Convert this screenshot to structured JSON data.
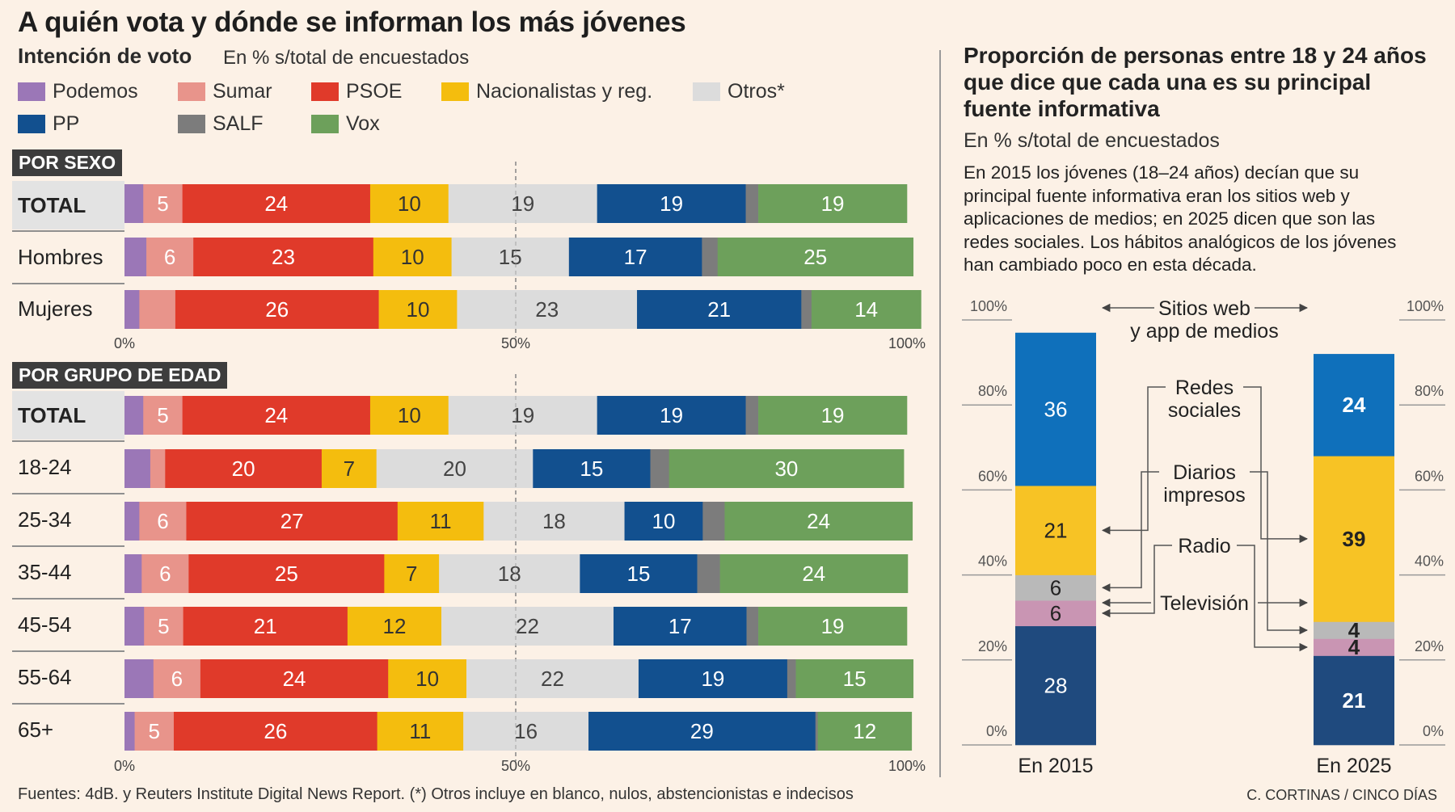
{
  "title": "A quién vota y dónde se informan los más jóvenes",
  "left": {
    "subtitle": "Intención de voto",
    "unit": "En % s/total de encuestados"
  },
  "colors": {
    "Podemos": "#9b77b7",
    "Sumar": "#e8948b",
    "PSOE": "#e03a2a",
    "Nacionalistas y reg.": "#f4bd0e",
    "Otros*": "#dcdcdc",
    "PP": "#12508f",
    "SALF": "#7c7c7c",
    "Vox": "#6da05b"
  },
  "legend": [
    {
      "label": "Podemos",
      "color": "#9b77b7"
    },
    {
      "label": "Sumar",
      "color": "#e8948b"
    },
    {
      "label": "PSOE",
      "color": "#e03a2a"
    },
    {
      "label": "Nacionalistas y reg.",
      "color": "#f4bd0e"
    },
    {
      "label": "Otros*",
      "color": "#dcdcdc"
    },
    {
      "label": "PP",
      "color": "#12508f"
    },
    {
      "label": "SALF",
      "color": "#7c7c7c"
    },
    {
      "label": "Vox",
      "color": "#6da05b"
    }
  ],
  "sections": {
    "sexo": "POR SEXO",
    "edad": "POR GRUPO DE EDAD"
  },
  "axis_ticks": [
    "0%",
    "50%",
    "100%"
  ],
  "source": "Fuentes: 4dB. y Reuters Institute Digital News Report. (*) Otros incluye en blanco, nulos, abstencionistas e indecisos",
  "credit": "C. CORTINAS / CINCO DÍAS",
  "right": {
    "title": "Proporción de personas entre 18 y 24 años que dice que cada una es su principal fuente informativa",
    "unit": "En % s/total de encuestados",
    "description": "En 2015 los jóvenes (18–24 años) decían que su principal fuente informativa eran los sitios web y aplicaciones de medios; en 2025 dicen que son las redes sociales. Los hábitos analógicos de los jóvenes han cambiado poco en esta década."
  },
  "chart_data": [
    {
      "type": "bar",
      "orientation": "horizontal-stacked",
      "section": "POR SEXO",
      "series_order": [
        "Podemos",
        "Sumar",
        "PSOE",
        "Nacionalistas y reg.",
        "Otros*",
        "PP",
        "SALF",
        "Vox"
      ],
      "xlim": [
        0,
        100
      ],
      "rows": [
        {
          "label": "TOTAL",
          "values": [
            2.4,
            5,
            24,
            10,
            19,
            19,
            1.6,
            19
          ],
          "labels": [
            "",
            "5",
            "24",
            "10",
            "19",
            "19",
            "",
            "19"
          ]
        },
        {
          "label": "Hombres",
          "values": [
            2.8,
            6,
            23,
            10,
            15,
            17,
            2,
            25
          ],
          "labels": [
            "",
            "6",
            "23",
            "10",
            "15",
            "17",
            "",
            "25"
          ]
        },
        {
          "label": "Mujeres",
          "values": [
            1.9,
            4.6,
            26,
            10,
            23,
            21,
            1.3,
            14
          ],
          "labels": [
            "",
            "",
            "26",
            "10",
            "23",
            "21",
            "",
            "14"
          ]
        }
      ]
    },
    {
      "type": "bar",
      "orientation": "horizontal-stacked",
      "section": "POR GRUPO DE EDAD",
      "series_order": [
        "Podemos",
        "Sumar",
        "PSOE",
        "Nacionalistas y reg.",
        "Otros*",
        "PP",
        "SALF",
        "Vox"
      ],
      "xlim": [
        0,
        100
      ],
      "rows": [
        {
          "label": "TOTAL",
          "values": [
            2.4,
            5,
            24,
            10,
            19,
            19,
            1.6,
            19
          ],
          "labels": [
            "",
            "5",
            "24",
            "10",
            "19",
            "19",
            "",
            "19"
          ]
        },
        {
          "label": "18-24",
          "values": [
            3.3,
            1.9,
            20,
            7,
            20,
            15,
            2.4,
            30
          ],
          "labels": [
            "",
            "",
            "20",
            "7",
            "20",
            "15",
            "",
            "30"
          ]
        },
        {
          "label": "25-34",
          "values": [
            1.9,
            6,
            27,
            11,
            18,
            10,
            2.8,
            24
          ],
          "labels": [
            "",
            "6",
            "27",
            "11",
            "18",
            "10",
            "",
            "24"
          ]
        },
        {
          "label": "35-44",
          "values": [
            2.2,
            6,
            25,
            7,
            18,
            15,
            2.9,
            24
          ],
          "labels": [
            "",
            "6",
            "25",
            "7",
            "18",
            "15",
            "",
            "24"
          ]
        },
        {
          "label": "45-54",
          "values": [
            2.5,
            5,
            21,
            12,
            22,
            17,
            1.5,
            19
          ],
          "labels": [
            "",
            "5",
            "21",
            "12",
            "22",
            "17",
            "",
            "19"
          ]
        },
        {
          "label": "55-64",
          "values": [
            3.7,
            6,
            24,
            10,
            22,
            19,
            1.1,
            15
          ],
          "labels": [
            "",
            "6",
            "24",
            "10",
            "22",
            "19",
            "",
            "15"
          ]
        },
        {
          "label": "65+",
          "values": [
            1.3,
            5,
            26,
            11,
            16,
            29,
            0.3,
            12
          ],
          "labels": [
            "",
            "5",
            "26",
            "11",
            "16",
            "29",
            "",
            "12"
          ]
        }
      ]
    },
    {
      "type": "bar",
      "orientation": "vertical-stacked",
      "title": "Proporción de personas entre 18 y 24 años que dice que cada una es su principal fuente informativa",
      "ylim": [
        0,
        100
      ],
      "yticks": [
        "0%",
        "20%",
        "40%",
        "60%",
        "80%",
        "100%"
      ],
      "categories": [
        "En 2015",
        "En 2025"
      ],
      "series": [
        {
          "name": "Televisión",
          "color": "#1f4a7e",
          "values": [
            28,
            21
          ]
        },
        {
          "name": "Radio",
          "color": "#c995b3",
          "values": [
            6,
            4
          ]
        },
        {
          "name": "Diarios impresos",
          "color": "#b9b9b9",
          "values": [
            6,
            4
          ]
        },
        {
          "name": "Redes sociales",
          "color": "#f7c325",
          "values": [
            21,
            39
          ]
        },
        {
          "name": "Sitios web y app de medios",
          "color": "#0f70bb",
          "values": [
            36,
            24
          ]
        }
      ],
      "series_labels": [
        {
          "name": "Sitios web",
          "line2": "y app de medios"
        },
        {
          "name": "Redes",
          "line2": "sociales"
        },
        {
          "name": "Diarios",
          "line2": "impresos"
        },
        {
          "name": "Radio",
          "line2": ""
        },
        {
          "name": "Televisión",
          "line2": ""
        }
      ]
    }
  ]
}
